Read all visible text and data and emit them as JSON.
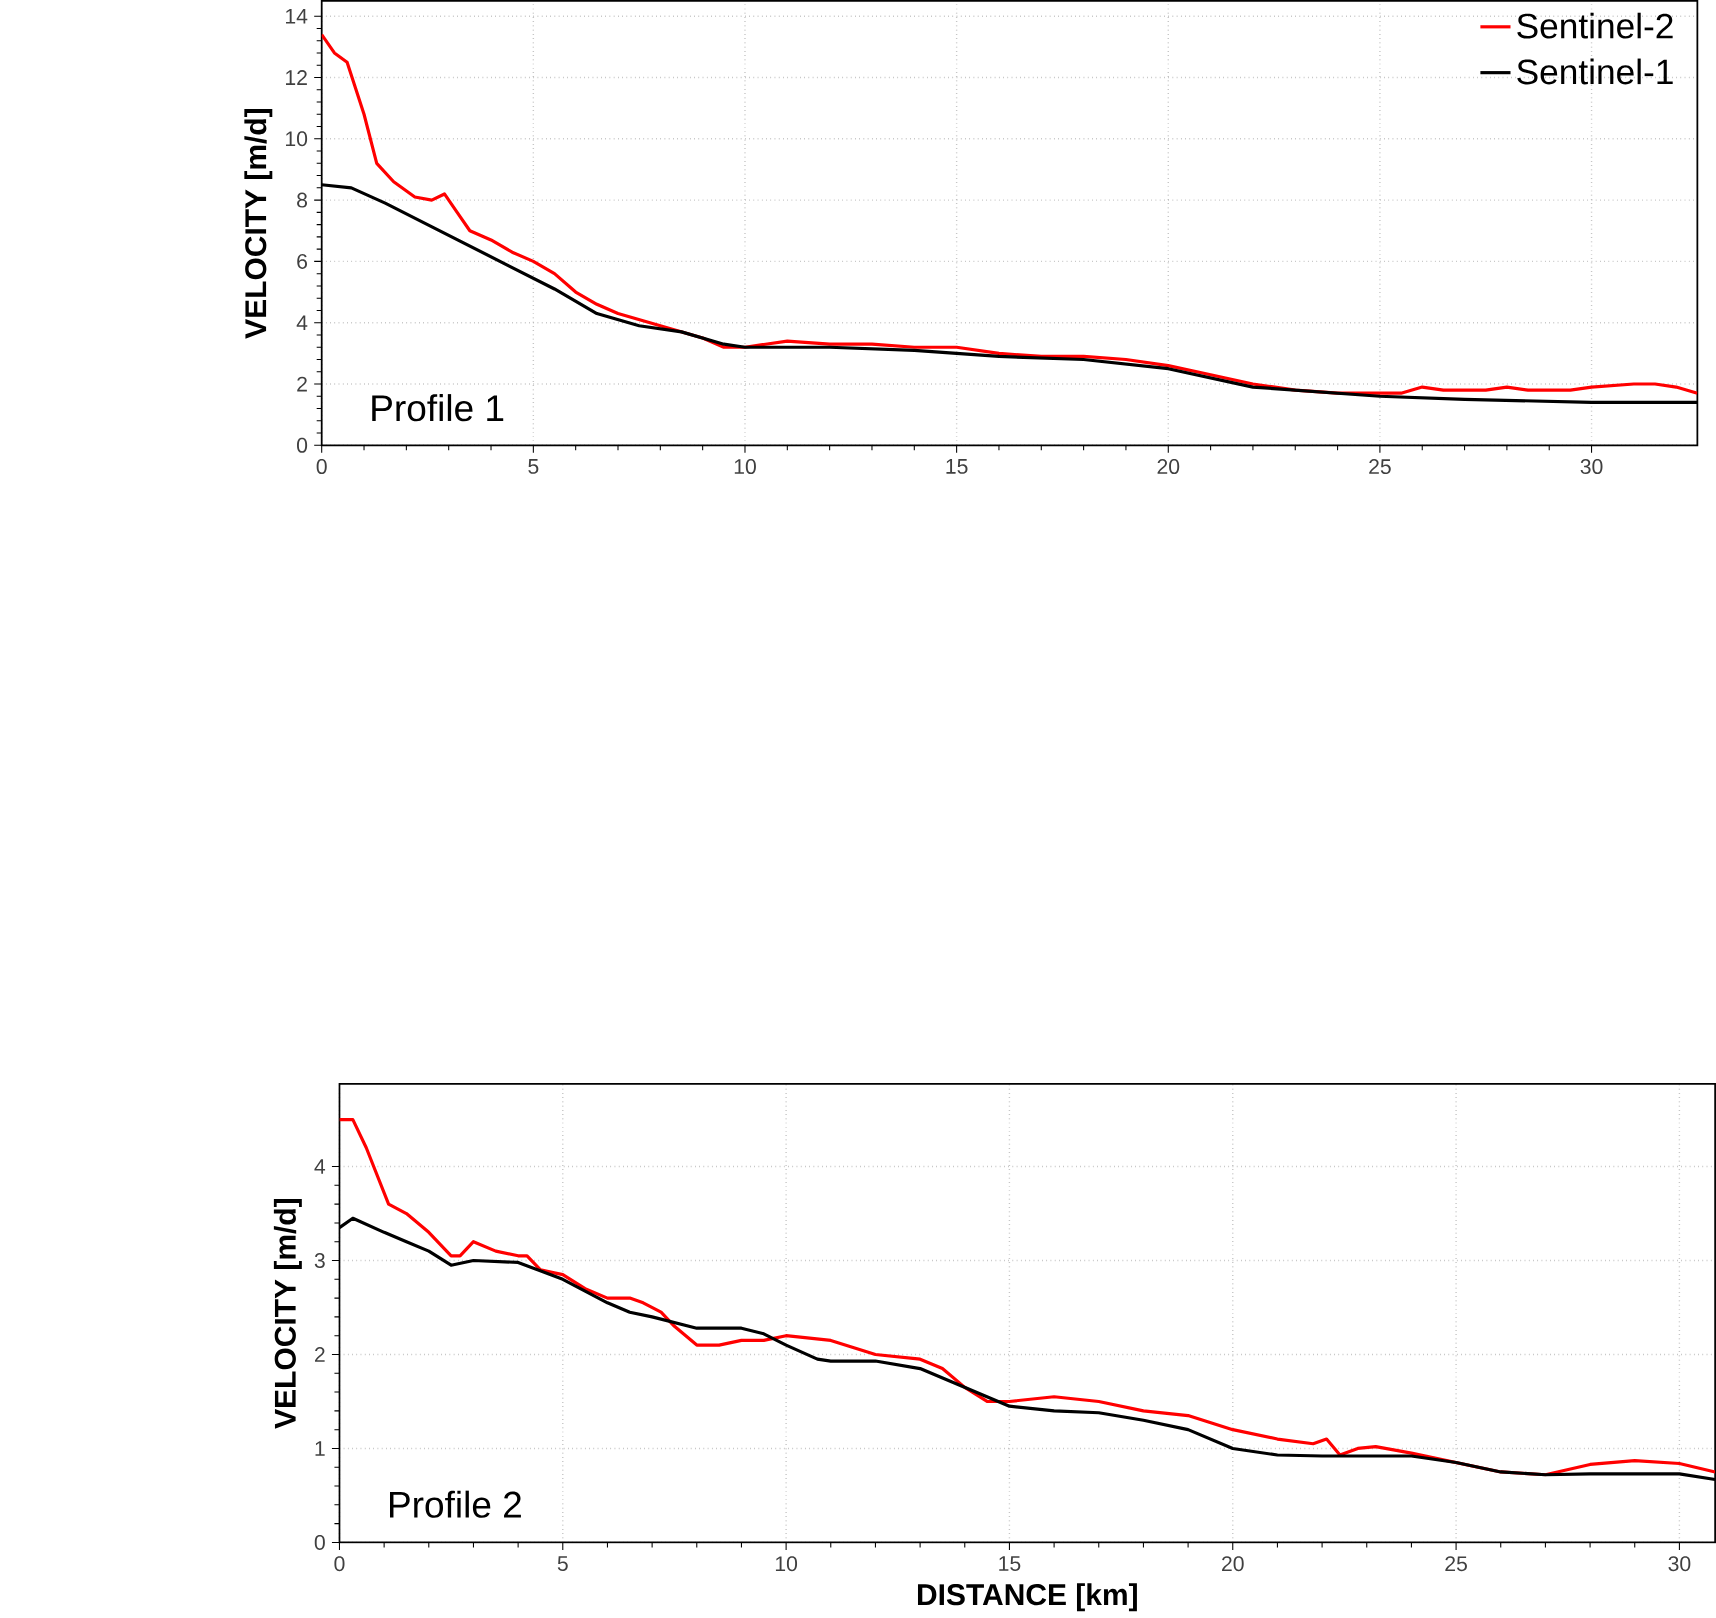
{
  "chart_data": [
    {
      "type": "line",
      "ylabel": "VELOCITY [m/d]",
      "annotations": [
        "Profile 1"
      ],
      "xlim": [
        0,
        32.5
      ],
      "ylim": [
        0,
        14.5
      ],
      "xticks": [
        0,
        5,
        10,
        15,
        20,
        25,
        30
      ],
      "yticks": [
        0,
        2,
        4,
        6,
        8,
        10,
        12,
        14
      ],
      "grid": true,
      "legend": "top right",
      "line_style": "solid",
      "series": [
        {
          "name": "Sentinel-2",
          "color": "#ff0000",
          "x": [
            0,
            0.3,
            0.6,
            1,
            1.3,
            1.7,
            2.2,
            2.6,
            2.9,
            3.2,
            3.5,
            4,
            4.5,
            5,
            5.5,
            6,
            6.5,
            7,
            8,
            9,
            9.5,
            10,
            11,
            12,
            13,
            14,
            15,
            16,
            17,
            18,
            19,
            20,
            21,
            22,
            23,
            24,
            25,
            25.5,
            26,
            26.5,
            27.5,
            28,
            28.5,
            29.5,
            30,
            31,
            31.5,
            32,
            32.5
          ],
          "values": [
            13.4,
            12.8,
            12.5,
            10.8,
            9.2,
            8.6,
            8.1,
            8.0,
            8.2,
            7.6,
            7.0,
            6.7,
            6.3,
            6.0,
            5.6,
            5.0,
            4.6,
            4.3,
            3.9,
            3.5,
            3.2,
            3.2,
            3.4,
            3.3,
            3.3,
            3.2,
            3.2,
            3.0,
            2.9,
            2.9,
            2.8,
            2.6,
            2.3,
            2.0,
            1.8,
            1.7,
            1.7,
            1.7,
            1.9,
            1.8,
            1.8,
            1.9,
            1.8,
            1.8,
            1.9,
            2.0,
            2.0,
            1.9,
            1.7
          ]
        },
        {
          "name": "Sentinel-1",
          "color": "#000000",
          "x": [
            0,
            0.7,
            1.5,
            2.5,
            3.5,
            4.5,
            5.5,
            6.5,
            7.5,
            8.5,
            9.5,
            10,
            12,
            14,
            16,
            18,
            20,
            21,
            22,
            23,
            25,
            27,
            30,
            32.5
          ],
          "values": [
            8.5,
            8.4,
            7.9,
            7.2,
            6.5,
            5.8,
            5.1,
            4.3,
            3.9,
            3.7,
            3.3,
            3.2,
            3.2,
            3.1,
            2.9,
            2.8,
            2.5,
            2.2,
            1.9,
            1.8,
            1.6,
            1.5,
            1.4,
            1.4
          ]
        }
      ]
    },
    {
      "type": "line",
      "xlabel": "DISTANCE [km]",
      "ylabel": "VELOCITY [m/d]",
      "annotations": [
        "Profile 2"
      ],
      "xlim": [
        0,
        30.8
      ],
      "ylim": [
        0,
        4.88
      ],
      "xticks": [
        0,
        5,
        10,
        15,
        20,
        25,
        30
      ],
      "yticks": [
        0,
        1,
        2,
        3,
        4
      ],
      "grid": true,
      "line_style": "solid",
      "series": [
        {
          "color": "#ff0000",
          "x": [
            0,
            0.3,
            0.6,
            1.1,
            1.5,
            2,
            2.5,
            2.7,
            3,
            3.5,
            4,
            4.2,
            4.5,
            5,
            5.5,
            6,
            6.5,
            6.8,
            7.2,
            7.5,
            8,
            8.5,
            9,
            9.5,
            10,
            11,
            12,
            13,
            13.5,
            14,
            14.5,
            15,
            16,
            17,
            18,
            19,
            20,
            21,
            21.8,
            22.1,
            22.4,
            22.8,
            23.2,
            24,
            25,
            26,
            27,
            28,
            29,
            30,
            30.8
          ],
          "values": [
            4.5,
            4.5,
            4.2,
            3.6,
            3.5,
            3.3,
            3.05,
            3.05,
            3.2,
            3.1,
            3.05,
            3.05,
            2.9,
            2.85,
            2.7,
            2.6,
            2.6,
            2.55,
            2.45,
            2.3,
            2.1,
            2.1,
            2.15,
            2.15,
            2.2,
            2.15,
            2.0,
            1.95,
            1.85,
            1.65,
            1.5,
            1.5,
            1.55,
            1.5,
            1.4,
            1.35,
            1.2,
            1.1,
            1.05,
            1.1,
            0.93,
            1.0,
            1.02,
            0.95,
            0.85,
            0.75,
            0.72,
            0.83,
            0.87,
            0.84,
            0.75
          ]
        },
        {
          "color": "#000000",
          "x": [
            0,
            0.3,
            1,
            1.5,
            2,
            2.5,
            3,
            4,
            5,
            6,
            6.5,
            7,
            8,
            9,
            9.5,
            10,
            10.7,
            11,
            12,
            13,
            14,
            15,
            16,
            17,
            18,
            19,
            20,
            21,
            22,
            24,
            25,
            26,
            27,
            28,
            30,
            30.8
          ],
          "values": [
            3.35,
            3.45,
            3.3,
            3.2,
            3.1,
            2.95,
            3.0,
            2.98,
            2.8,
            2.55,
            2.45,
            2.4,
            2.28,
            2.28,
            2.22,
            2.1,
            1.95,
            1.93,
            1.93,
            1.85,
            1.65,
            1.45,
            1.4,
            1.38,
            1.3,
            1.2,
            1.0,
            0.93,
            0.92,
            0.92,
            0.85,
            0.75,
            0.72,
            0.73,
            0.73,
            0.67
          ]
        }
      ]
    }
  ]
}
